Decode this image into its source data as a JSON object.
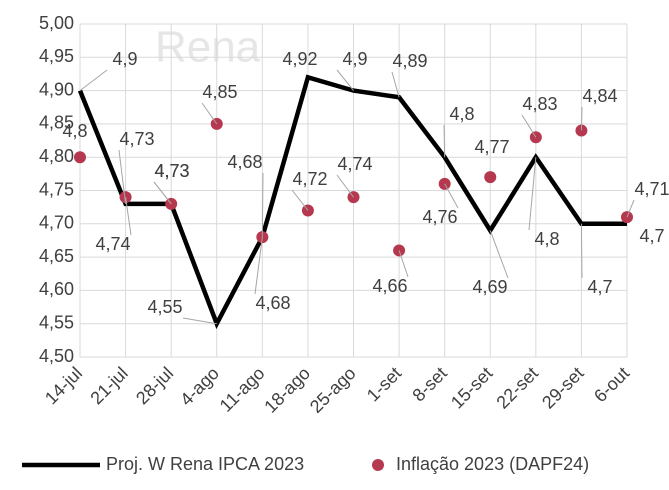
{
  "chart_data": {
    "type": "line-scatter",
    "watermark": "Rena",
    "categories": [
      "14-jul",
      "21-jul",
      "28-jul",
      "4-ago",
      "11-ago",
      "18-ago",
      "25-ago",
      "1-set",
      "8-set",
      "15-set",
      "22-set",
      "29-set",
      "6-out"
    ],
    "series": [
      {
        "name": "Proj. W Rena IPCA 2023",
        "type": "line",
        "color": "#000000",
        "values": [
          4.9,
          4.73,
          4.73,
          4.55,
          4.68,
          4.92,
          4.9,
          4.89,
          4.8,
          4.69,
          4.8,
          4.7,
          4.7
        ],
        "value_labels": [
          "4,9",
          "4,73",
          "4,73",
          "4,55",
          "4,68",
          "4,92",
          "4,9",
          "4,89",
          "4,8",
          "4,69",
          "4,8",
          "4,7",
          "4,7"
        ]
      },
      {
        "name": "Inflação 2023 (DAPF24)",
        "type": "scatter",
        "color": "#b5384f",
        "values": [
          4.8,
          4.74,
          4.73,
          4.85,
          4.68,
          4.72,
          4.74,
          4.66,
          4.76,
          4.77,
          4.83,
          4.84,
          4.71
        ],
        "value_labels": [
          "4,8",
          "4,74",
          "4,73",
          "4,85",
          "4,68",
          "4,72",
          "4,74",
          "4,66",
          "4,76",
          "4,77",
          "4,83",
          "4,84",
          "4,71"
        ]
      }
    ],
    "ylim": [
      4.5,
      5.0
    ],
    "yticks": [
      {
        "value": 4.5,
        "label": "4,50"
      },
      {
        "value": 4.55,
        "label": "4,55"
      },
      {
        "value": 4.6,
        "label": "4,60"
      },
      {
        "value": 4.65,
        "label": "4,65"
      },
      {
        "value": 4.7,
        "label": "4,70"
      },
      {
        "value": 4.75,
        "label": "4,75"
      },
      {
        "value": 4.8,
        "label": "4,80"
      },
      {
        "value": 4.85,
        "label": "4,85"
      },
      {
        "value": 4.9,
        "label": "4,90"
      },
      {
        "value": 4.95,
        "label": "4,95"
      },
      {
        "value": 5.0,
        "label": "5,00"
      }
    ],
    "grid": true,
    "legend": "bottom"
  }
}
